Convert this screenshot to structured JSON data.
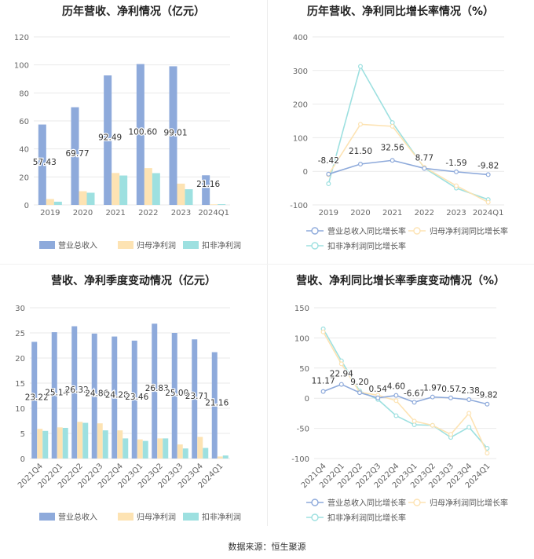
{
  "source": "数据来源：恒生聚源",
  "colors": {
    "revenue": "#8eaadb",
    "net_profit": "#fde3b3",
    "deducted": "#9de0e0",
    "grid": "#e9e9e9",
    "axis_text": "#666666"
  },
  "chart_data": [
    {
      "type": "bar",
      "title": "历年营收、净利情况（亿元）",
      "categories": [
        "2019",
        "2020",
        "2021",
        "2022",
        "2023",
        "2024Q1"
      ],
      "ylim": [
        0,
        120
      ],
      "yticks": [
        0,
        20,
        40,
        60,
        80,
        100,
        120
      ],
      "series": [
        {
          "name": "营业总收入",
          "values": [
            57.43,
            69.77,
            92.49,
            100.6,
            99.01,
            21.16
          ]
        },
        {
          "name": "归母净利润",
          "values": [
            4.2,
            9.8,
            22.8,
            26.3,
            15.2,
            0.4
          ]
        },
        {
          "name": "扣非净利润",
          "values": [
            2.3,
            8.7,
            21.0,
            22.7,
            11.2,
            0.5
          ]
        }
      ],
      "labels": [
        "57.43",
        "69.77",
        "92.49",
        "100.60",
        "99.01",
        "21.16"
      ],
      "legend": "bottom"
    },
    {
      "type": "line",
      "title": "历年营收、净利同比增长率情况（%）",
      "categories": [
        "2019",
        "2020",
        "2021",
        "2022",
        "2023",
        "2024Q1"
      ],
      "ylim": [
        -100,
        400
      ],
      "yticks": [
        -100,
        0,
        100,
        200,
        300,
        400
      ],
      "series": [
        {
          "name": "营业总收入同比增长率",
          "values": [
            -8.42,
            21.5,
            32.56,
            8.77,
            -1.59,
            -9.82
          ]
        },
        {
          "name": "归母净利润同比增长率",
          "values": [
            -10,
            140,
            134,
            12,
            -43,
            -92
          ]
        },
        {
          "name": "扣非净利润同比增长率",
          "values": [
            -37,
            312,
            145,
            10,
            -50,
            -84
          ]
        }
      ],
      "labels": [
        "-8.42",
        "21.50",
        "32.56",
        "8.77",
        "-1.59",
        "-9.82"
      ],
      "legend": "bottom"
    },
    {
      "type": "bar",
      "title": "营收、净利季度变动情况（亿元）",
      "categories": [
        "2021Q4",
        "2022Q1",
        "2022Q2",
        "2022Q3",
        "2022Q4",
        "2023Q1",
        "2023Q2",
        "2023Q3",
        "2023Q4",
        "2024Q1"
      ],
      "ylim": [
        0,
        30
      ],
      "yticks": [
        0,
        5,
        10,
        15,
        20,
        25,
        30
      ],
      "series": [
        {
          "name": "营业总收入",
          "values": [
            23.22,
            25.14,
            26.32,
            24.86,
            24.28,
            23.46,
            26.83,
            25.0,
            23.71,
            21.16
          ]
        },
        {
          "name": "归母净利润",
          "values": [
            5.9,
            6.2,
            7.3,
            7.0,
            5.6,
            3.8,
            4.0,
            2.8,
            4.3,
            0.4
          ]
        },
        {
          "name": "扣非净利润",
          "values": [
            5.5,
            6.1,
            7.1,
            5.6,
            4.0,
            3.5,
            4.0,
            2.0,
            2.1,
            0.6
          ]
        }
      ],
      "labels": [
        "23.22",
        "25.14",
        "26.32",
        "24.86",
        "24.28",
        "23.46",
        "26.83",
        "25.00",
        "23.71",
        "21.16"
      ],
      "legend": "bottom"
    },
    {
      "type": "line",
      "title": "营收、净利同比增长率季度变动情况（%）",
      "categories": [
        "2021Q4",
        "2022Q1",
        "2022Q2",
        "2022Q3",
        "2022Q4",
        "2023Q1",
        "2023Q2",
        "2023Q3",
        "2023Q4",
        "2024Q1"
      ],
      "ylim": [
        -100,
        150
      ],
      "yticks": [
        -100,
        -50,
        0,
        50,
        100,
        150
      ],
      "series": [
        {
          "name": "营业总收入同比增长率",
          "values": [
            11.17,
            22.94,
            9.2,
            0.54,
            4.6,
            -6.67,
            1.97,
            0.57,
            -2.38,
            -9.82
          ]
        },
        {
          "name": "归母净利润同比增长率",
          "values": [
            110,
            57,
            10,
            5,
            -4,
            -38,
            -45,
            -60,
            -25,
            -91
          ]
        },
        {
          "name": "扣非净利润同比增长率",
          "values": [
            115,
            62,
            12,
            -2,
            -29,
            -44,
            -45,
            -65,
            -48,
            -83
          ]
        }
      ],
      "labels": [
        "11.17",
        "22.94",
        "9.20",
        "0.54",
        "4.60",
        "-6.67",
        "1.97",
        "0.57",
        "-2.38",
        "-9.82"
      ],
      "legend": "bottom"
    }
  ]
}
